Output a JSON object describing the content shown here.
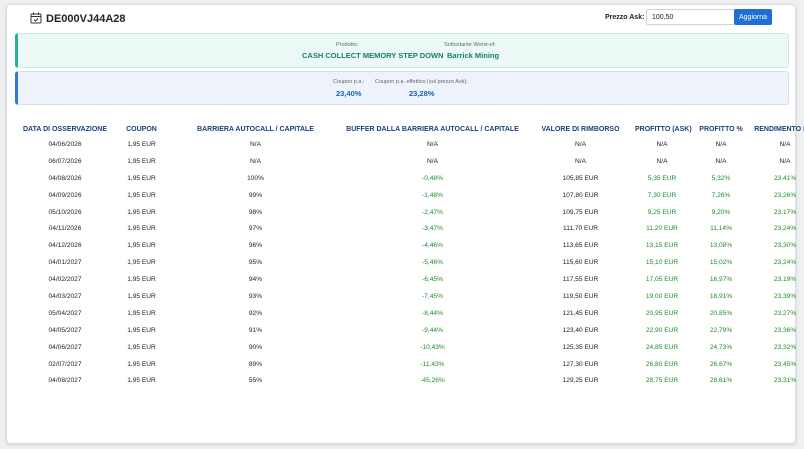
{
  "header": {
    "isin": "DE000VJ44A28",
    "ask_label": "Prezzo Ask:",
    "ask_value": "100,50",
    "update_label": "Aggiorna"
  },
  "product": {
    "prodotto_label": "Prodotto:",
    "prodotto_value": "CASH COLLECT MEMORY STEP DOWN",
    "sottostante_label": "Sottostante Worst-of:",
    "sottostante_value": "Barrick Mining"
  },
  "coupon": {
    "coupon_label": "Coupon p.a.:",
    "coupon_value": "23,40%",
    "effettivo_label": "Coupon p.a. effettivo (sul prezzo Ask):",
    "effettivo_value": "23,28%"
  },
  "table": {
    "headers": [
      "DATA DI OSSERVAZIONE",
      "COUPON",
      "BARRIERA AUTOCALL / CAPITALE",
      "BUFFER DALLA BARRIERA AUTOCALL / CAPITALE",
      "VALORE DI RIMBORSO",
      "PROFITTO (ASK)",
      "PROFITTO %",
      "RENDIMENTO P.A."
    ],
    "rows": [
      [
        "04/06/2026",
        "1,95 EUR",
        "N/A",
        "N/A",
        "N/A",
        "N/A",
        "N/A",
        "N/A"
      ],
      [
        "06/07/2026",
        "1,95 EUR",
        "N/A",
        "N/A",
        "N/A",
        "N/A",
        "N/A",
        "N/A"
      ],
      [
        "04/08/2026",
        "1,95 EUR",
        "100%",
        "-0,48%",
        "105,85 EUR",
        "5,35 EUR",
        "5,32%",
        "23,41%"
      ],
      [
        "04/09/2026",
        "1,95 EUR",
        "99%",
        "-1,48%",
        "107,80 EUR",
        "7,30 EUR",
        "7,26%",
        "23,26%"
      ],
      [
        "05/10/2026",
        "1,95 EUR",
        "98%",
        "-2,47%",
        "109,75 EUR",
        "9,25 EUR",
        "9,20%",
        "23,17%"
      ],
      [
        "04/11/2026",
        "1,95 EUR",
        "97%",
        "-3,47%",
        "111,70 EUR",
        "11,20 EUR",
        "11,14%",
        "23,24%"
      ],
      [
        "04/12/2026",
        "1,95 EUR",
        "96%",
        "-4,46%",
        "113,65 EUR",
        "13,15 EUR",
        "13,08%",
        "23,30%"
      ],
      [
        "04/01/2027",
        "1,95 EUR",
        "95%",
        "-5,46%",
        "115,60 EUR",
        "15,10 EUR",
        "15,02%",
        "23,24%"
      ],
      [
        "04/02/2027",
        "1,95 EUR",
        "94%",
        "-6,45%",
        "117,55 EUR",
        "17,05 EUR",
        "16,97%",
        "23,19%"
      ],
      [
        "04/03/2027",
        "1,95 EUR",
        "93%",
        "-7,45%",
        "119,50 EUR",
        "19,00 EUR",
        "18,91%",
        "23,39%"
      ],
      [
        "05/04/2027",
        "1,95 EUR",
        "92%",
        "-8,44%",
        "121,45 EUR",
        "20,95 EUR",
        "20,85%",
        "23,27%"
      ],
      [
        "04/05/2027",
        "1,95 EUR",
        "91%",
        "-9,44%",
        "123,40 EUR",
        "22,90 EUR",
        "22,79%",
        "23,36%"
      ],
      [
        "04/06/2027",
        "1,95 EUR",
        "90%",
        "-10,43%",
        "125,35 EUR",
        "24,85 EUR",
        "24,73%",
        "23,32%"
      ],
      [
        "02/07/2027",
        "1,95 EUR",
        "89%",
        "-11,43%",
        "127,30 EUR",
        "26,80 EUR",
        "26,67%",
        "23,45%"
      ],
      [
        "04/08/2027",
        "1,95 EUR",
        "55%",
        "-45,26%",
        "129,25 EUR",
        "28,75 EUR",
        "28,61%",
        "23,31%"
      ]
    ]
  },
  "colors": {
    "accent": "#1f6fd6",
    "positive": "#1e8a2c",
    "header_text": "#1d3f78",
    "teal": "#14806d"
  }
}
